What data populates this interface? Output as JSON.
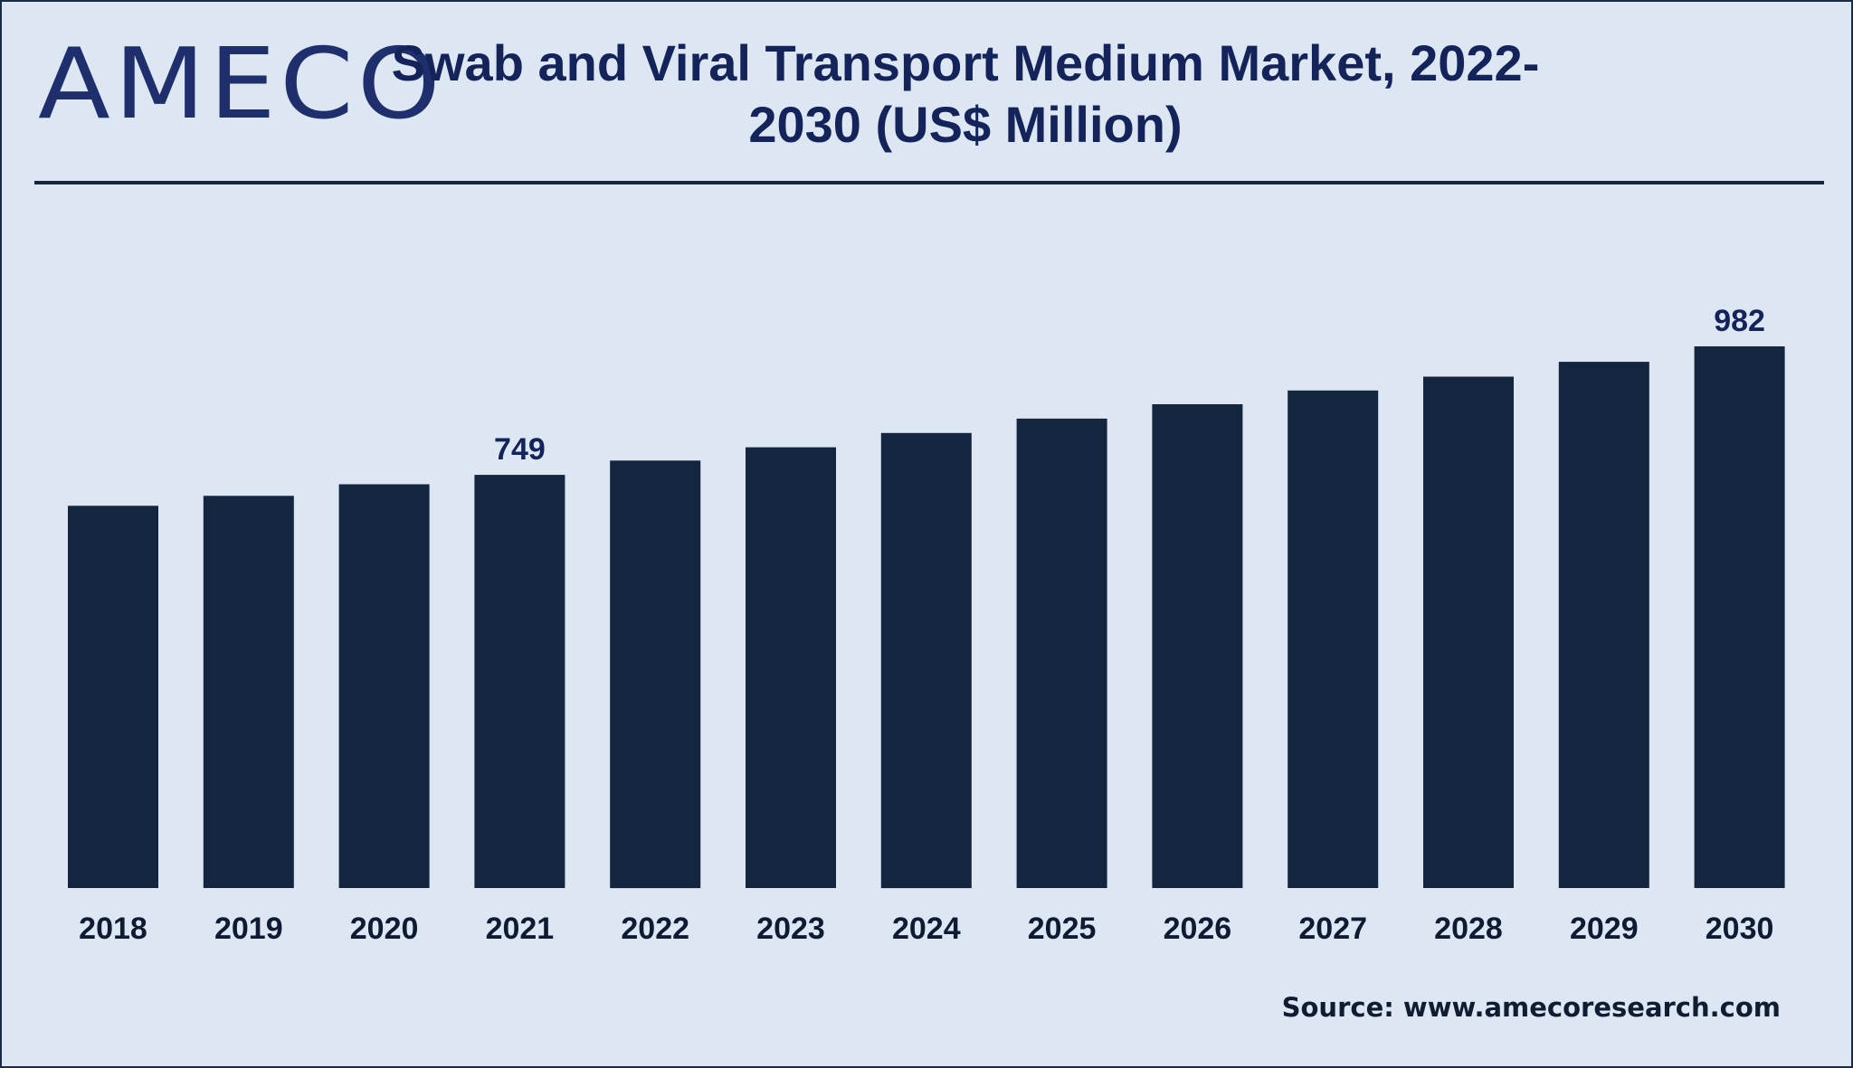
{
  "logo": {
    "text": "AMECO"
  },
  "chart_data": {
    "type": "bar",
    "title": "Swab and Viral Transport Medium Market, 2022-2030 (US$ Million)",
    "xlabel": "",
    "ylabel": "",
    "categories": [
      "2018",
      "2019",
      "2020",
      "2021",
      "2022",
      "2023",
      "2024",
      "2025",
      "2026",
      "2027",
      "2028",
      "2029",
      "2030"
    ],
    "values": [
      693,
      711,
      732,
      749,
      775,
      799,
      825,
      851,
      877,
      902,
      927,
      954,
      982
    ],
    "data_labels": {
      "3": "749",
      "12": "982"
    },
    "ylim": [
      0,
      1000
    ],
    "grid": false,
    "bar_color": "#13253f"
  },
  "source": "Source: www.amecoresearch.com"
}
